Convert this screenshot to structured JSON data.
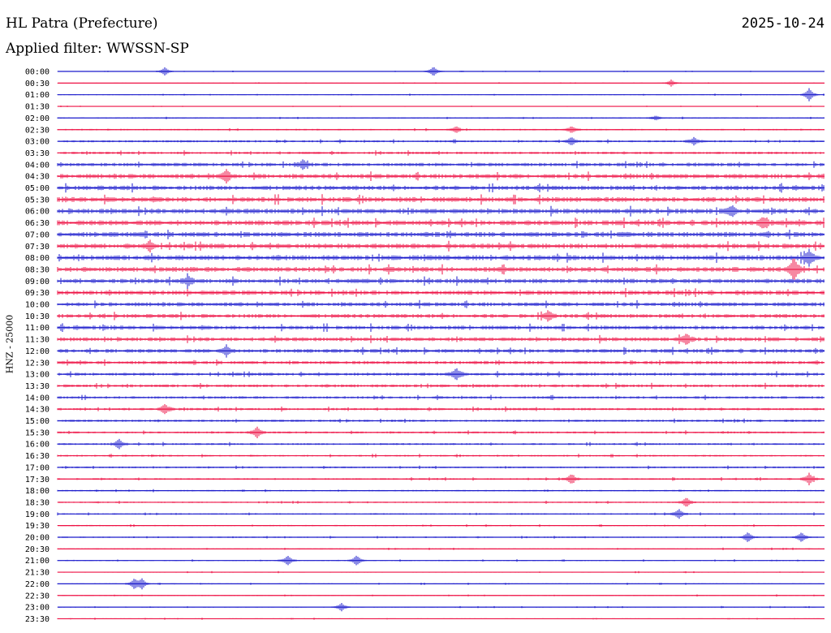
{
  "header": {
    "station": "HL Patra (Prefecture)",
    "date": "2025-10-24",
    "filter": "Applied filter: WWSSN-SP",
    "channel_label": "HNZ - 25000"
  },
  "colors": {
    "trace_a": "#1a1acc",
    "trace_b": "#ee1144"
  },
  "chart_data": {
    "type": "line",
    "title": "HL Patra (Prefecture)",
    "subtitle": "Applied filter: WWSSN-SP",
    "date": "2025-10-24",
    "ylabel": "HNZ - 25000",
    "xlabel": "",
    "grid": false,
    "rows": [
      "00:00",
      "00:30",
      "01:00",
      "01:30",
      "02:00",
      "02:30",
      "03:00",
      "03:30",
      "04:00",
      "04:30",
      "05:00",
      "05:30",
      "06:00",
      "06:30",
      "07:00",
      "07:30",
      "08:00",
      "08:30",
      "09:00",
      "09:30",
      "10:00",
      "10:30",
      "11:00",
      "11:30",
      "12:00",
      "12:30",
      "13:00",
      "13:30",
      "14:00",
      "14:30",
      "15:00",
      "15:30",
      "16:00",
      "16:30",
      "17:00",
      "17:30",
      "18:00",
      "18:30",
      "19:00",
      "19:30",
      "20:00",
      "20:30",
      "21:00",
      "21:30",
      "22:00",
      "22:30",
      "23:00",
      "23:30"
    ],
    "row_colors": [
      "trace_a",
      "trace_b"
    ],
    "noise_level": [
      0.3,
      0.3,
      0.4,
      0.3,
      0.5,
      0.6,
      0.8,
      1.0,
      1.4,
      1.8,
      1.8,
      2.0,
      2.0,
      2.0,
      2.0,
      2.0,
      2.0,
      2.0,
      1.8,
      1.8,
      1.6,
      1.6,
      1.6,
      1.6,
      1.5,
      1.3,
      1.2,
      1.2,
      1.0,
      1.0,
      0.9,
      0.8,
      0.8,
      0.7,
      0.7,
      0.7,
      0.6,
      0.6,
      0.6,
      0.5,
      0.5,
      0.5,
      0.5,
      0.4,
      0.4,
      0.4,
      0.4,
      0.4
    ],
    "events": [
      {
        "row": "00:00",
        "pos": 0.14,
        "amp": 5
      },
      {
        "row": "00:00",
        "pos": 0.49,
        "amp": 6
      },
      {
        "row": "00:30",
        "pos": 0.8,
        "amp": 4
      },
      {
        "row": "01:00",
        "pos": 0.98,
        "amp": 8
      },
      {
        "row": "02:00",
        "pos": 0.78,
        "amp": 3
      },
      {
        "row": "02:30",
        "pos": 0.52,
        "amp": 4
      },
      {
        "row": "02:30",
        "pos": 0.67,
        "amp": 4
      },
      {
        "row": "03:00",
        "pos": 0.67,
        "amp": 5
      },
      {
        "row": "03:00",
        "pos": 0.83,
        "amp": 5
      },
      {
        "row": "04:00",
        "pos": 0.32,
        "amp": 5
      },
      {
        "row": "04:30",
        "pos": 0.22,
        "amp": 7
      },
      {
        "row": "06:00",
        "pos": 0.88,
        "amp": 6
      },
      {
        "row": "06:30",
        "pos": 0.92,
        "amp": 6
      },
      {
        "row": "07:30",
        "pos": 0.12,
        "amp": 6
      },
      {
        "row": "08:00",
        "pos": 0.98,
        "amp": 9
      },
      {
        "row": "08:30",
        "pos": 0.96,
        "amp": 14
      },
      {
        "row": "09:00",
        "pos": 0.17,
        "amp": 6
      },
      {
        "row": "10:30",
        "pos": 0.64,
        "amp": 6
      },
      {
        "row": "11:30",
        "pos": 0.82,
        "amp": 6
      },
      {
        "row": "12:00",
        "pos": 0.22,
        "amp": 6
      },
      {
        "row": "13:00",
        "pos": 0.52,
        "amp": 7
      },
      {
        "row": "14:30",
        "pos": 0.14,
        "amp": 6
      },
      {
        "row": "15:30",
        "pos": 0.26,
        "amp": 7
      },
      {
        "row": "16:00",
        "pos": 0.08,
        "amp": 6
      },
      {
        "row": "17:30",
        "pos": 0.67,
        "amp": 6
      },
      {
        "row": "17:30",
        "pos": 0.98,
        "amp": 7
      },
      {
        "row": "18:30",
        "pos": 0.82,
        "amp": 6
      },
      {
        "row": "19:00",
        "pos": 0.81,
        "amp": 6
      },
      {
        "row": "20:00",
        "pos": 0.9,
        "amp": 6
      },
      {
        "row": "20:00",
        "pos": 0.97,
        "amp": 6
      },
      {
        "row": "21:00",
        "pos": 0.3,
        "amp": 6
      },
      {
        "row": "21:00",
        "pos": 0.39,
        "amp": 6
      },
      {
        "row": "22:00",
        "pos": 0.1,
        "amp": 6
      },
      {
        "row": "22:00",
        "pos": 0.11,
        "amp": 6
      },
      {
        "row": "23:00",
        "pos": 0.37,
        "amp": 5
      }
    ]
  }
}
